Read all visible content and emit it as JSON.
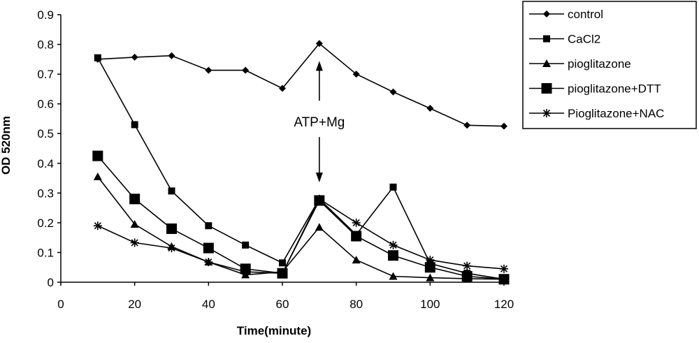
{
  "chart_data": {
    "type": "line",
    "title": "",
    "xlabel": "Time(minute)",
    "ylabel": "OD 520nm",
    "xlim": [
      0,
      120
    ],
    "ylim": [
      0,
      0.9
    ],
    "xticks": [
      0,
      20,
      40,
      60,
      80,
      100,
      120
    ],
    "yticks": [
      0,
      0.1,
      0.2,
      0.3,
      0.4,
      0.5,
      0.6,
      0.7,
      0.8,
      0.9
    ],
    "x": [
      10,
      20,
      30,
      40,
      50,
      60,
      70,
      80,
      90,
      100,
      110,
      120
    ],
    "grid": false,
    "legend_position": "top-right",
    "series": [
      {
        "name": "control",
        "marker": "diamond",
        "values": [
          0.75,
          0.757,
          0.762,
          0.713,
          0.713,
          0.652,
          0.803,
          0.7,
          0.64,
          0.585,
          0.528,
          0.525
        ]
      },
      {
        "name": "CaCl2",
        "marker": "square",
        "values": [
          0.755,
          0.53,
          0.307,
          0.19,
          0.125,
          0.065,
          0.28,
          0.16,
          0.32,
          0.063,
          0.03,
          0.01
        ]
      },
      {
        "name": "pioglitazone",
        "marker": "triangle",
        "values": [
          0.355,
          0.195,
          0.12,
          0.068,
          0.025,
          0.035,
          0.185,
          0.075,
          0.02,
          0.015,
          0.012,
          0.01
        ]
      },
      {
        "name": "pioglitazone+DTT",
        "marker": "big-square",
        "values": [
          0.425,
          0.28,
          0.18,
          0.115,
          0.045,
          0.03,
          0.275,
          0.155,
          0.09,
          0.05,
          0.02,
          0.01
        ]
      },
      {
        "name": "Pioglitazone+NAC",
        "marker": "star",
        "values": [
          0.19,
          0.133,
          0.115,
          0.068,
          0.035,
          0.03,
          0.28,
          0.2,
          0.125,
          0.075,
          0.055,
          0.045
        ]
      }
    ],
    "annotations": [
      {
        "text": "ATP+Mg",
        "x": 70,
        "y": 0.54,
        "arrow_up_to": 0.73,
        "arrow_down_to": 0.35
      }
    ]
  }
}
